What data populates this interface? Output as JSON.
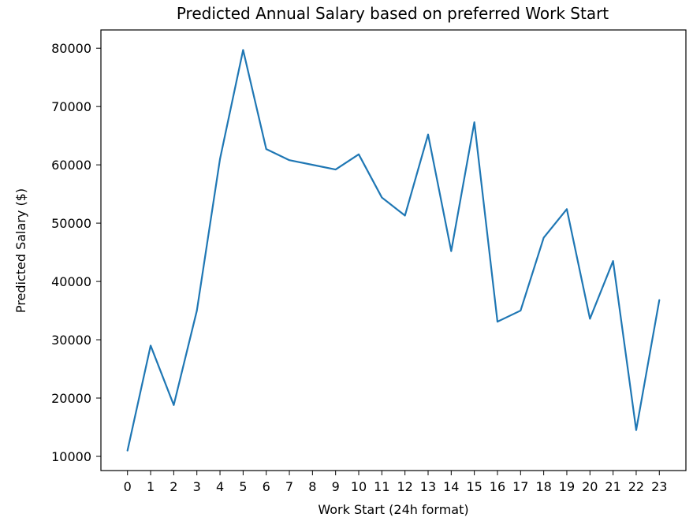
{
  "chart_data": {
    "type": "line",
    "title": "Predicted Annual Salary based on preferred Work Start",
    "xlabel": "Work Start (24h format)",
    "ylabel": "Predicted Salary ($)",
    "x": [
      0,
      1,
      2,
      3,
      4,
      5,
      6,
      7,
      8,
      9,
      10,
      11,
      12,
      13,
      14,
      15,
      16,
      17,
      18,
      19,
      20,
      21,
      22,
      23
    ],
    "series": [
      {
        "values": [
          11000,
          29000,
          18800,
          35000,
          61000,
          79700,
          62700,
          60800,
          60000,
          59200,
          61800,
          54400,
          51300,
          65200,
          45200,
          67300,
          33100,
          35000,
          47500,
          52400,
          33600,
          43500,
          14500,
          36800
        ],
        "color": "#1f77b4"
      }
    ],
    "xticks": [
      0,
      1,
      2,
      3,
      4,
      5,
      6,
      7,
      8,
      9,
      10,
      11,
      12,
      13,
      14,
      15,
      16,
      17,
      18,
      19,
      20,
      21,
      22,
      23
    ],
    "yticks": [
      10000,
      20000,
      30000,
      40000,
      50000,
      60000,
      70000,
      80000
    ],
    "xlim": [
      -1.15,
      24.15
    ],
    "ylim": [
      7565,
      83135
    ],
    "grid": false,
    "legend": "none"
  }
}
